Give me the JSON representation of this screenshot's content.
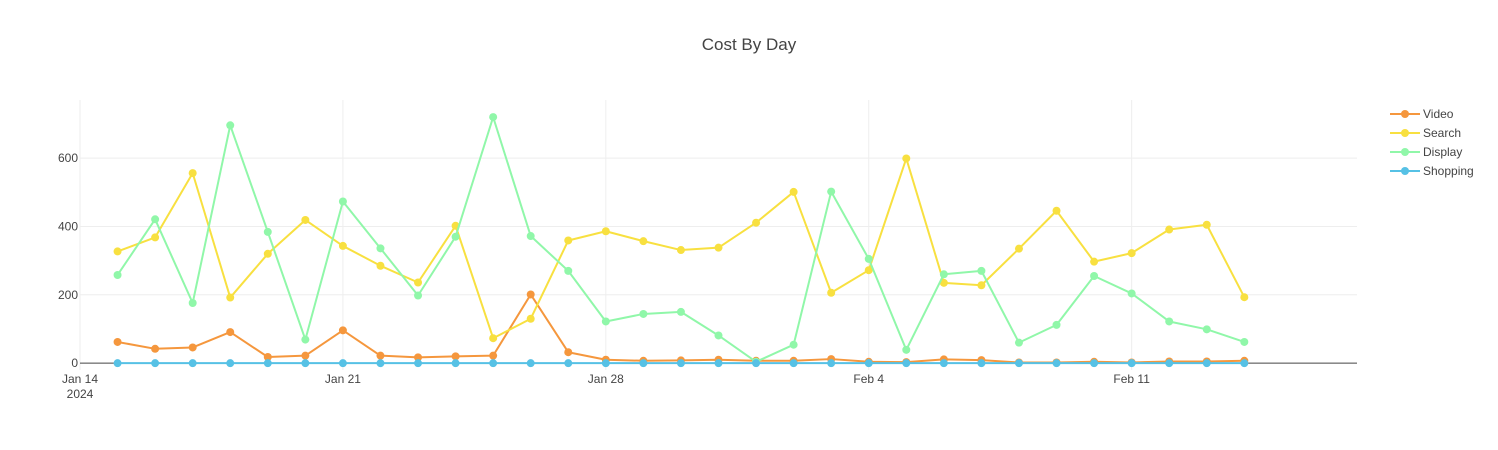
{
  "chart_data": {
    "type": "line",
    "title": "Cost By Day",
    "xlabel": "",
    "ylabel": "",
    "x": [
      "2024-01-15",
      "2024-01-16",
      "2024-01-17",
      "2024-01-18",
      "2024-01-19",
      "2024-01-20",
      "2024-01-21",
      "2024-01-22",
      "2024-01-23",
      "2024-01-24",
      "2024-01-25",
      "2024-01-26",
      "2024-01-27",
      "2024-01-28",
      "2024-01-29",
      "2024-01-30",
      "2024-01-31",
      "2024-02-01",
      "2024-02-02",
      "2024-02-03",
      "2024-02-04",
      "2024-02-05",
      "2024-02-06",
      "2024-02-07",
      "2024-02-08",
      "2024-02-09",
      "2024-02-10",
      "2024-02-11",
      "2024-02-12",
      "2024-02-13",
      "2024-02-14"
    ],
    "x_range": [
      "2024-01-14",
      "2024-02-17"
    ],
    "ylim": [
      -20,
      770
    ],
    "grid": true,
    "legend_position": "top-right",
    "x_ticks": [
      {
        "date": "2024-01-14",
        "label": "Jan 14",
        "sublabel": "2024"
      },
      {
        "date": "2024-01-21",
        "label": "Jan 21",
        "sublabel": ""
      },
      {
        "date": "2024-01-28",
        "label": "Jan 28",
        "sublabel": ""
      },
      {
        "date": "2024-02-04",
        "label": "Feb 4",
        "sublabel": ""
      },
      {
        "date": "2024-02-11",
        "label": "Feb 11",
        "sublabel": ""
      }
    ],
    "y_ticks": [
      0,
      200,
      400,
      600
    ],
    "series": [
      {
        "name": "Video",
        "color": "#f5973d",
        "values": [
          62,
          42,
          46,
          91,
          18,
          22,
          96,
          22,
          17,
          20,
          22,
          201,
          32,
          10,
          7,
          8,
          10,
          7,
          7,
          12,
          4,
          3,
          11,
          9,
          2,
          2,
          4,
          2,
          5,
          5,
          7
        ]
      },
      {
        "name": "Search",
        "color": "#f8e040",
        "values": [
          327,
          368,
          556,
          192,
          320,
          419,
          343,
          285,
          236,
          402,
          73,
          130,
          359,
          386,
          357,
          331,
          338,
          411,
          501,
          206,
          272,
          599,
          235,
          228,
          335,
          446,
          297,
          322,
          391,
          405,
          193
        ]
      },
      {
        "name": "Display",
        "color": "#90f7a9",
        "values": [
          258,
          421,
          176,
          696,
          384,
          69,
          473,
          336,
          198,
          370,
          720,
          372,
          270,
          122,
          144,
          150,
          81,
          4,
          54,
          502,
          305,
          39,
          260,
          270,
          60,
          112,
          255,
          204,
          122,
          99,
          62
        ]
      },
      {
        "name": "Shopping",
        "color": "#56c1e5",
        "values": [
          0,
          0,
          0,
          0,
          0,
          0,
          0,
          0,
          0,
          0,
          0,
          0,
          0,
          0,
          0,
          0,
          0,
          0,
          0,
          0,
          0,
          0,
          0,
          0,
          0,
          0,
          0,
          0,
          0,
          0,
          0
        ]
      }
    ]
  }
}
